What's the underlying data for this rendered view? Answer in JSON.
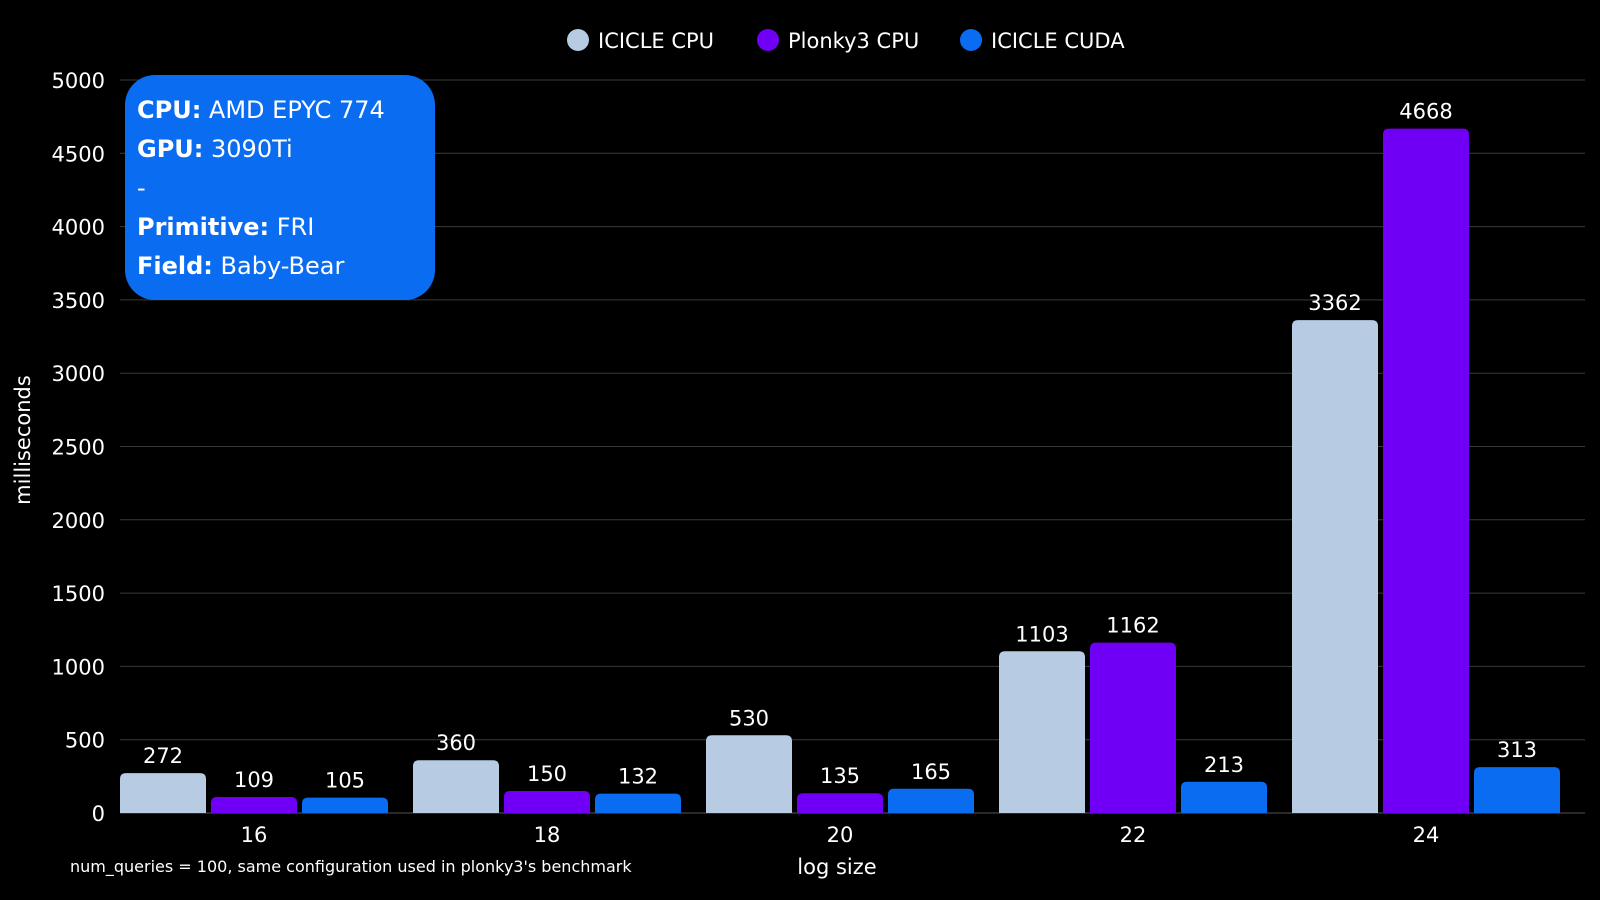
{
  "chart_data": {
    "type": "bar",
    "categories": [
      "16",
      "18",
      "20",
      "22",
      "24"
    ],
    "series": [
      {
        "name": "ICICLE CPU",
        "color": "#b7cbe3",
        "values": [
          272,
          360,
          530,
          1103,
          3362
        ]
      },
      {
        "name": "Plonky3 CPU",
        "color": "#6f00f5",
        "values": [
          109,
          150,
          135,
          1162,
          4668
        ]
      },
      {
        "name": "ICICLE CUDA",
        "color": "#0a6cf0",
        "values": [
          105,
          132,
          165,
          213,
          313
        ]
      }
    ],
    "xlabel": "log size",
    "ylabel": "milliseconds",
    "ylim": [
      0,
      5000
    ],
    "yticks": [
      0,
      500,
      1000,
      1500,
      2000,
      2500,
      3000,
      3500,
      4000,
      4500,
      5000
    ],
    "grid": true,
    "legend": "top-center",
    "footnote": "num_queries = 100, same configuration used in plonky3's benchmark"
  },
  "info_box": {
    "lines": [
      {
        "key": "CPU:",
        "value": " AMD EPYC 774"
      },
      {
        "key": "GPU:",
        "value": " 3090Ti"
      },
      {
        "key": "",
        "value": "-"
      },
      {
        "key": "Primitive:",
        "value": " FRI"
      },
      {
        "key": "Field:",
        "value": " Baby-Bear"
      }
    ]
  }
}
